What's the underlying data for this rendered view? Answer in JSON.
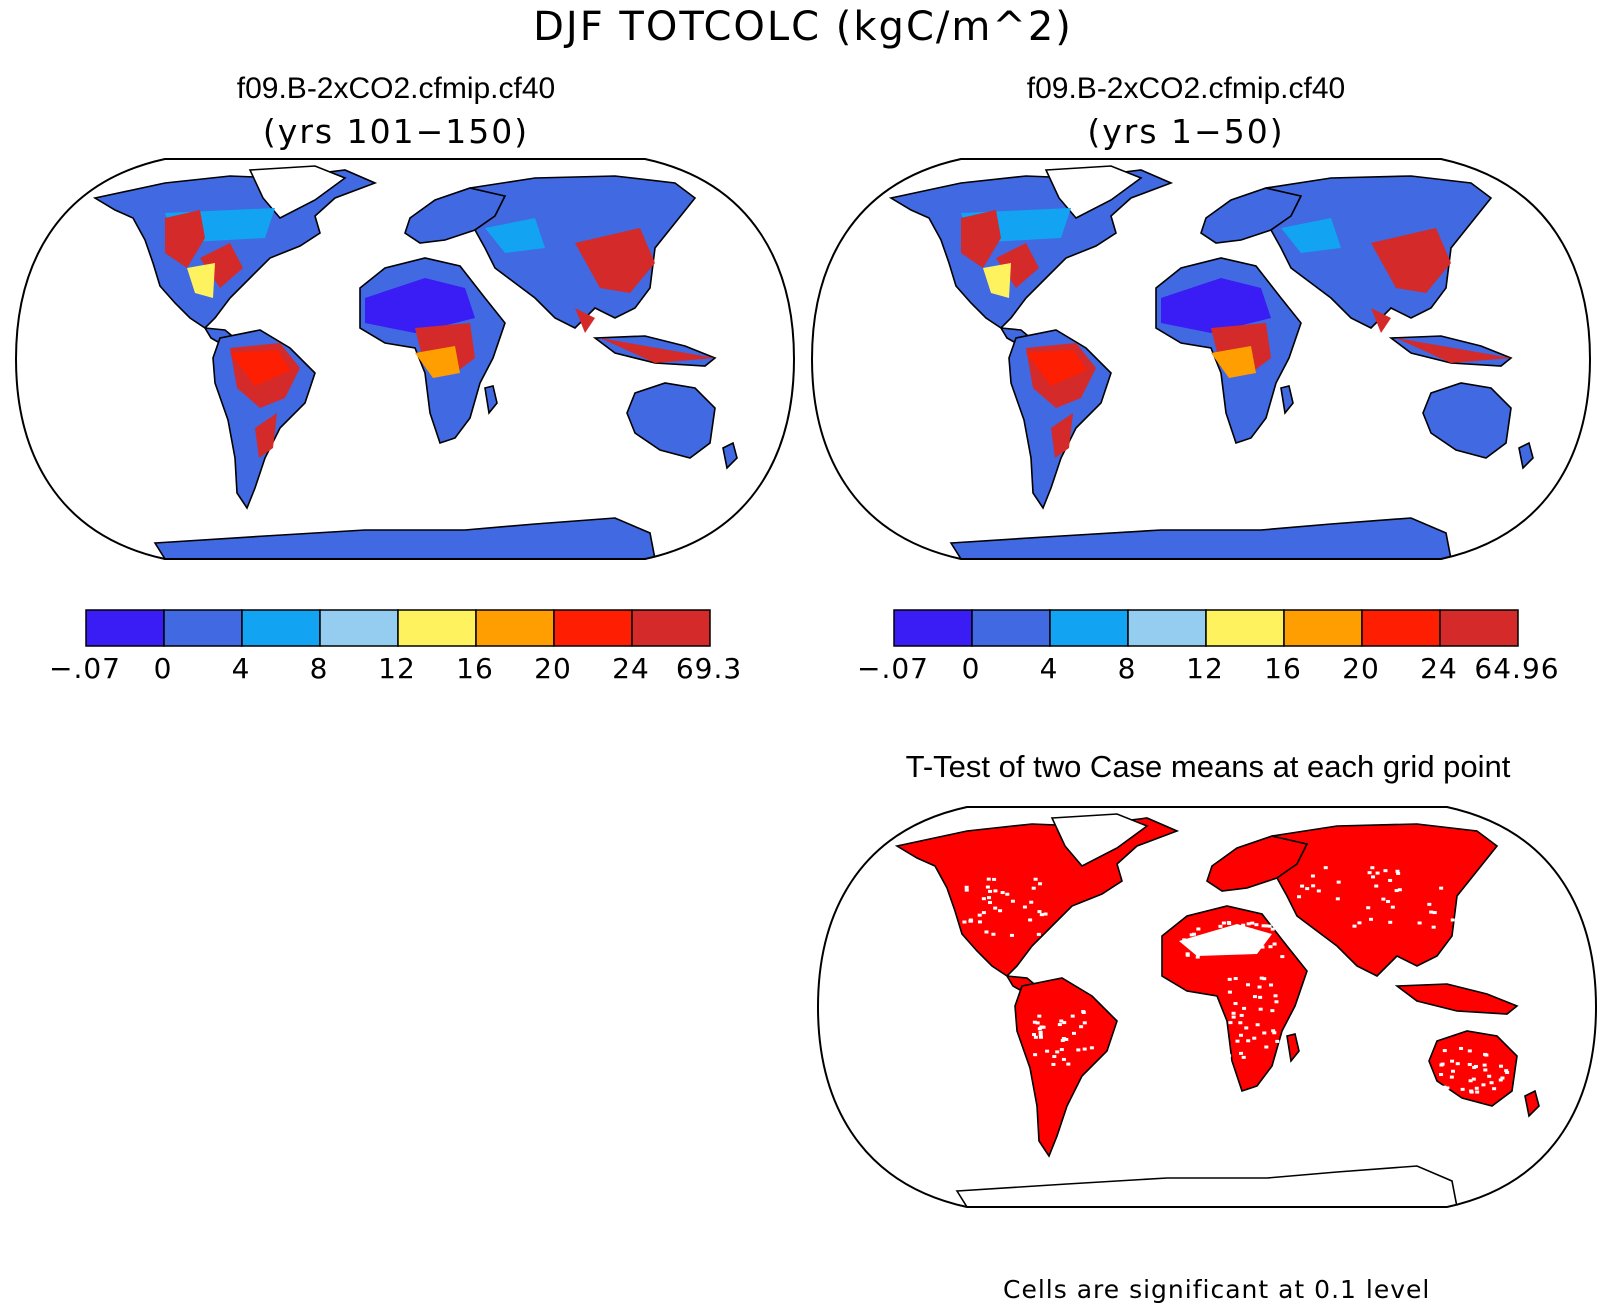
{
  "figure": {
    "title": "DJF TOTCOLC (kgC/m^2)",
    "footnote": "Cells are significant at 0.1 level"
  },
  "panels": [
    {
      "title": "f09.B-2xCO2.cfmip.cf40",
      "subtitle": "(yrs 101−150)",
      "colorbar": {
        "colors": [
          "#3a1cf5",
          "#4169e1",
          "#12a3f2",
          "#95cdf0",
          "#fef25e",
          "#fe9e00",
          "#fe1e02",
          "#d42a2a"
        ],
        "labels": [
          "−.07",
          "0",
          "4",
          "8",
          "12",
          "16",
          "20",
          "24",
          "69.3"
        ]
      }
    },
    {
      "title": "f09.B-2xCO2.cfmip.cf40",
      "subtitle": "(yrs 1−50)",
      "colorbar": {
        "colors": [
          "#3a1cf5",
          "#4169e1",
          "#12a3f2",
          "#95cdf0",
          "#fef25e",
          "#fe9e00",
          "#fe1e02",
          "#d42a2a"
        ],
        "labels": [
          "−.07",
          "0",
          "4",
          "8",
          "12",
          "16",
          "20",
          "24",
          "64.96"
        ]
      }
    }
  ],
  "ttest": {
    "title": "T-Test of two Case means at each grid point",
    "significant_color": "#fe0000"
  }
}
